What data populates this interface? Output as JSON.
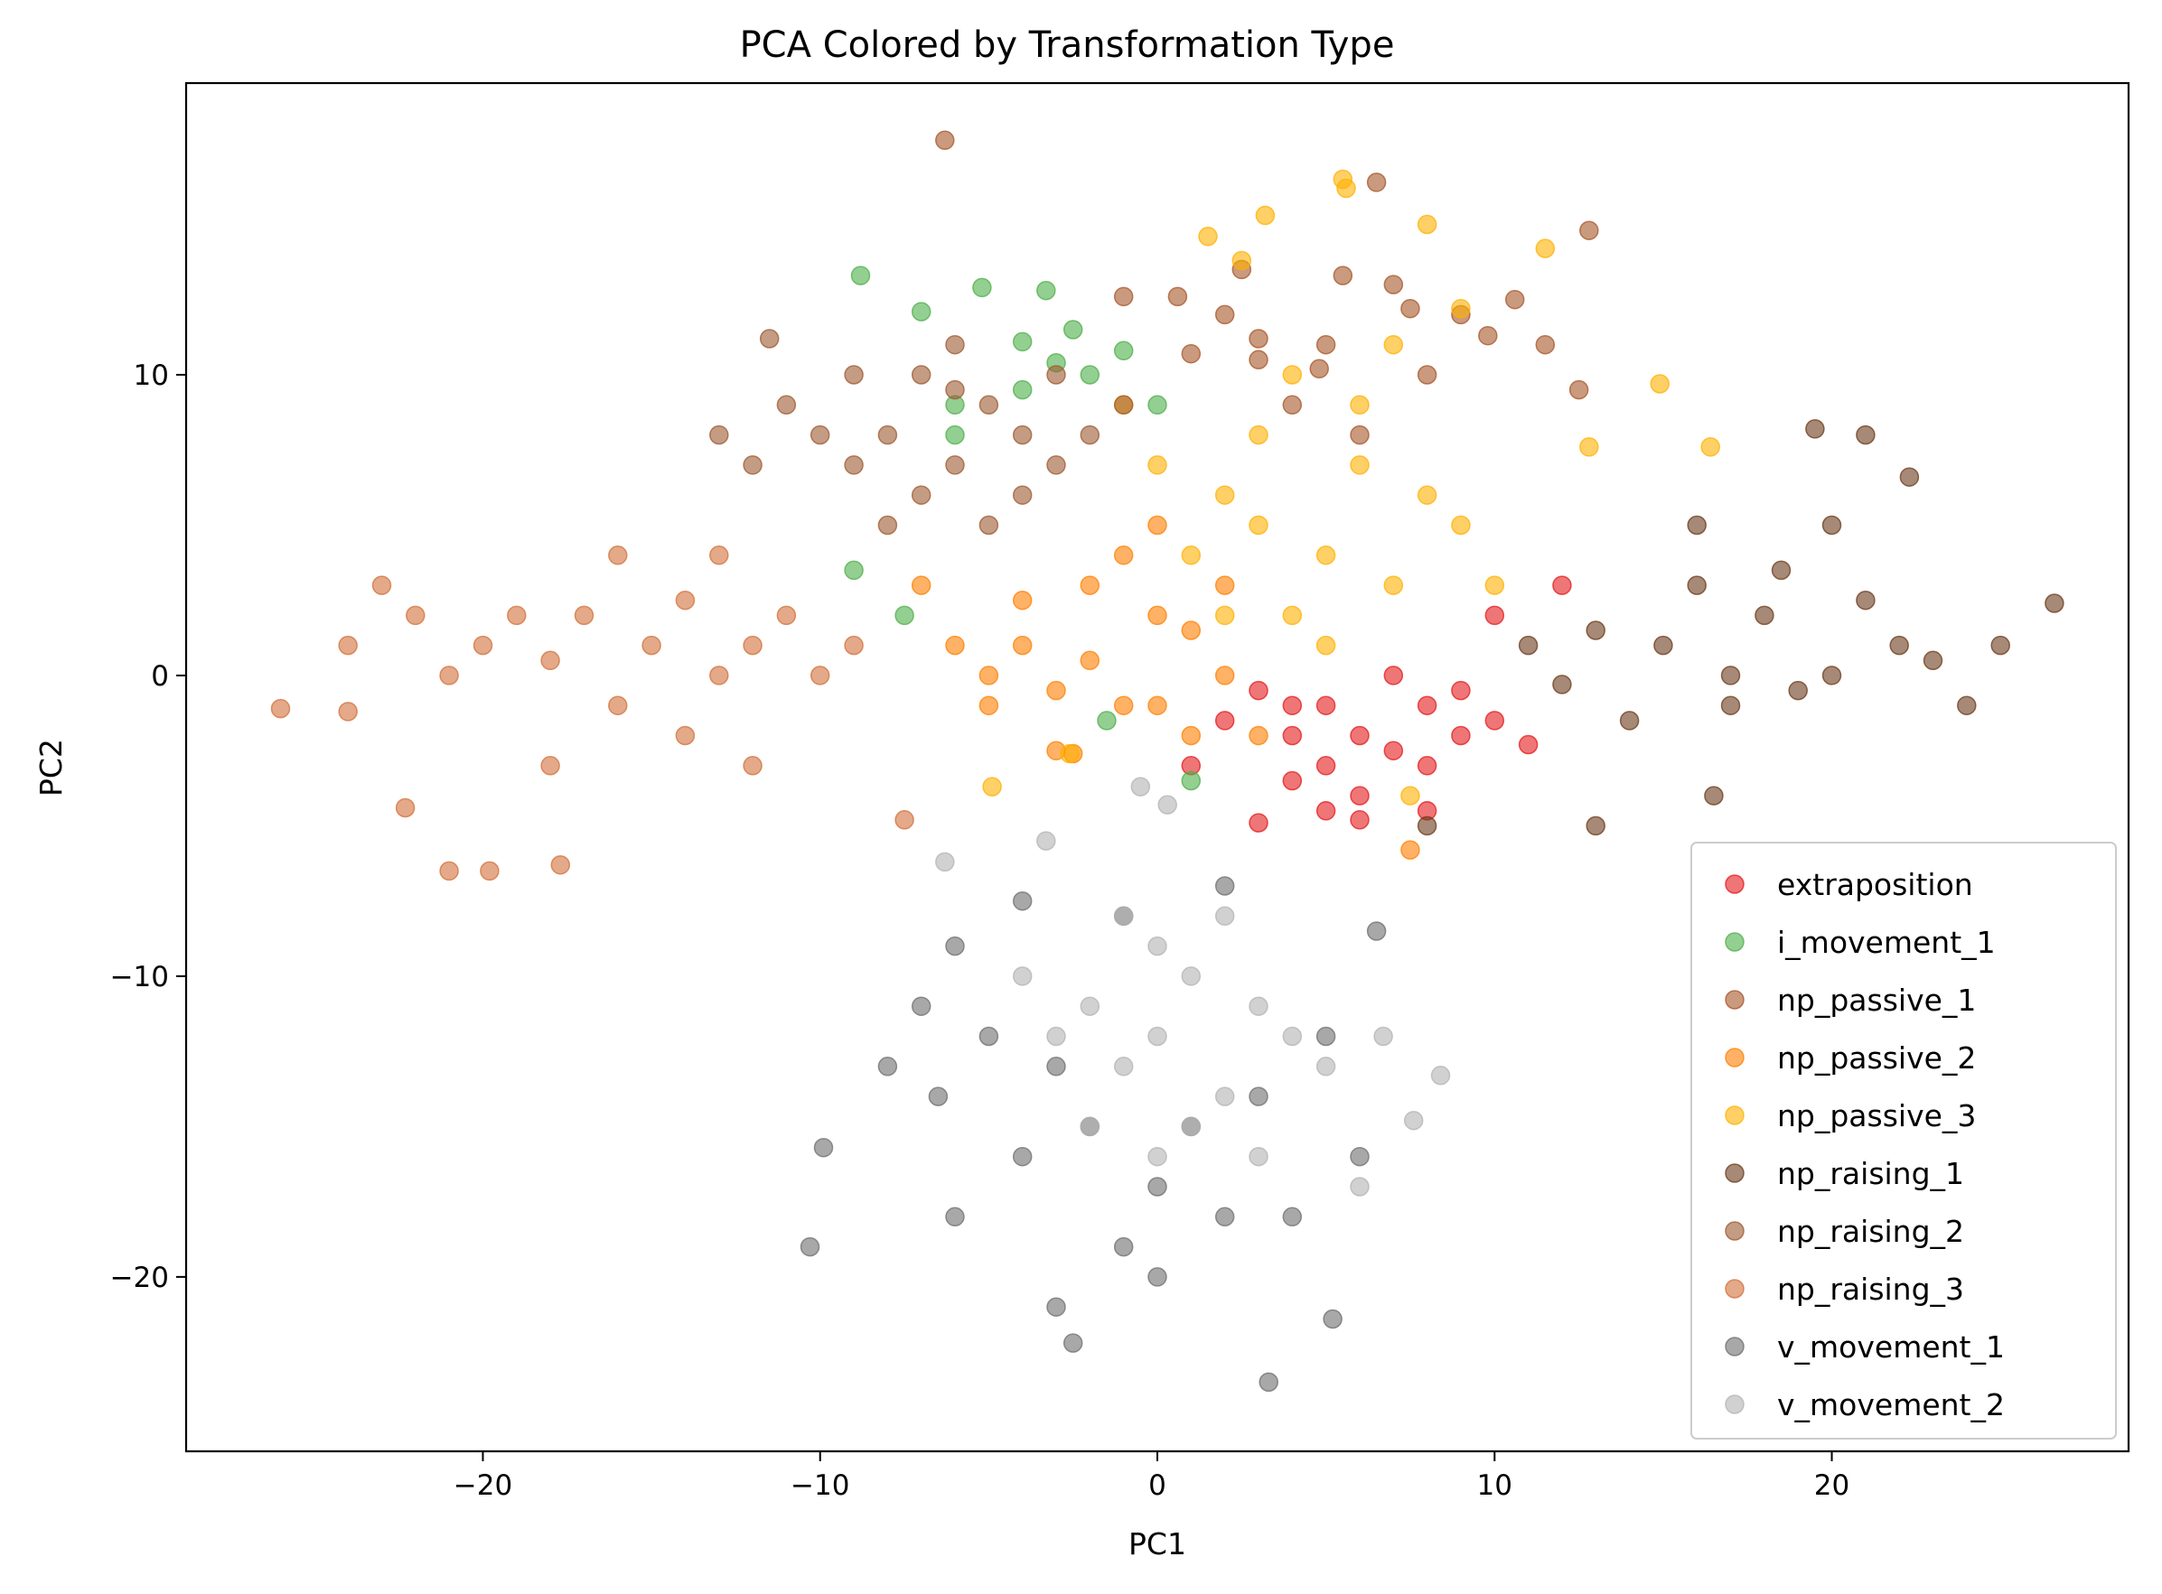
{
  "chart_data": {
    "type": "scatter",
    "title": "PCA Colored by Transformation Type",
    "xlabel": "PC1",
    "ylabel": "PC2",
    "xlim": [
      -28.8,
      28.8
    ],
    "ylim": [
      -25.8,
      19.7
    ],
    "xticks": [
      {
        "value": -20,
        "label": "−20"
      },
      {
        "value": -10,
        "label": "−10"
      },
      {
        "value": 0,
        "label": "0"
      },
      {
        "value": 10,
        "label": "10"
      },
      {
        "value": 20,
        "label": "20"
      }
    ],
    "yticks": [
      {
        "value": -20,
        "label": "−20"
      },
      {
        "value": -10,
        "label": "−10"
      },
      {
        "value": 0,
        "label": "0"
      },
      {
        "value": 10,
        "label": "10"
      }
    ],
    "grid": false,
    "legend_position": "bottom-right",
    "marker_alpha": 0.6,
    "series": [
      {
        "name": "extraposition",
        "color": "#e41a1c",
        "points": [
          [
            4,
            -1
          ],
          [
            6,
            -2
          ],
          [
            8,
            -1
          ],
          [
            5,
            -3
          ],
          [
            7,
            -2.5
          ],
          [
            3,
            -0.5
          ],
          [
            9,
            -0.5
          ],
          [
            6,
            -4
          ],
          [
            5,
            -4.5
          ],
          [
            8,
            -3
          ],
          [
            10,
            -1.5
          ],
          [
            4,
            -2
          ],
          [
            7,
            0
          ],
          [
            2,
            -1.5
          ],
          [
            11,
            -2.3
          ],
          [
            3,
            -4.9
          ],
          [
            6,
            -4.8
          ],
          [
            1,
            -3
          ],
          [
            8,
            -4.5
          ],
          [
            5,
            -1
          ],
          [
            9,
            -2
          ],
          [
            4,
            -3.5
          ],
          [
            12,
            3
          ],
          [
            10,
            2
          ]
        ]
      },
      {
        "name": "i_movement_1",
        "color": "#4daf4a",
        "points": [
          [
            -8.8,
            13.3
          ],
          [
            -5.2,
            12.9
          ],
          [
            -3.3,
            12.8
          ],
          [
            -7,
            12.1
          ],
          [
            -4,
            11.1
          ],
          [
            -2,
            10
          ],
          [
            0,
            9
          ],
          [
            -6,
            8
          ],
          [
            -4,
            9.5
          ],
          [
            -3,
            10.4
          ],
          [
            -1,
            10.8
          ],
          [
            -7.5,
            2
          ],
          [
            -9,
            3.5
          ],
          [
            -1.5,
            -1.5
          ],
          [
            1,
            -3.5
          ],
          [
            -6,
            9
          ],
          [
            -2.5,
            11.5
          ]
        ]
      },
      {
        "name": "np_passive_1",
        "color": "#a65628",
        "points": [
          [
            -6.3,
            17.8
          ],
          [
            6.5,
            16.4
          ],
          [
            12.8,
            14.8
          ],
          [
            2,
            12
          ],
          [
            5,
            11
          ],
          [
            3,
            10.5
          ],
          [
            7,
            13
          ],
          [
            9,
            12
          ],
          [
            10.6,
            12.5
          ],
          [
            11.5,
            11
          ],
          [
            -1,
            12.6
          ],
          [
            0.6,
            12.6
          ],
          [
            4,
            9
          ],
          [
            6,
            8
          ],
          [
            8,
            10
          ],
          [
            3,
            11.2
          ],
          [
            1,
            10.7
          ],
          [
            12.5,
            9.5
          ],
          [
            9.8,
            11.3
          ],
          [
            5.5,
            13.3
          ],
          [
            7.5,
            12.2
          ],
          [
            2.5,
            13.5
          ],
          [
            4.8,
            10.2
          ]
        ]
      },
      {
        "name": "np_passive_2",
        "color": "#ff7f00",
        "points": [
          [
            -4,
            1
          ],
          [
            -2,
            0.5
          ],
          [
            0,
            2
          ],
          [
            -1,
            -1
          ],
          [
            -3,
            -0.5
          ],
          [
            1,
            1.5
          ],
          [
            -5,
            0
          ],
          [
            2,
            0
          ],
          [
            -2,
            3
          ],
          [
            0,
            -1
          ],
          [
            -4,
            2.5
          ],
          [
            -6,
            1
          ],
          [
            3,
            -2
          ],
          [
            -1,
            4
          ],
          [
            -3,
            -2.5
          ],
          [
            1,
            -2
          ],
          [
            -5,
            -1
          ],
          [
            -7,
            3
          ],
          [
            -2.5,
            -2.6
          ],
          [
            7.5,
            -5.8
          ],
          [
            0,
            5
          ],
          [
            2,
            3
          ]
        ]
      },
      {
        "name": "np_passive_3",
        "color": "#ffb000",
        "points": [
          [
            5.5,
            16.5
          ],
          [
            3.2,
            15.3
          ],
          [
            1.5,
            14.6
          ],
          [
            8,
            15
          ],
          [
            11.5,
            14.2
          ],
          [
            14.9,
            9.7
          ],
          [
            16.4,
            7.6
          ],
          [
            12.8,
            7.6
          ],
          [
            2.5,
            13.8
          ],
          [
            5.6,
            16.2
          ],
          [
            -4.9,
            -3.7
          ],
          [
            -2.6,
            -2.6
          ],
          [
            7.5,
            -4
          ],
          [
            3,
            5
          ],
          [
            5,
            4
          ],
          [
            2,
            6
          ],
          [
            6,
            7
          ],
          [
            4,
            2
          ],
          [
            7,
            3
          ],
          [
            1,
            4
          ],
          [
            8,
            6
          ],
          [
            3,
            8
          ],
          [
            5,
            1
          ],
          [
            9,
            5
          ],
          [
            0,
            7
          ],
          [
            2,
            2
          ],
          [
            10,
            3
          ],
          [
            6,
            9
          ],
          [
            4,
            10
          ],
          [
            7,
            11
          ],
          [
            9,
            12.2
          ],
          [
            -1,
            9
          ]
        ]
      },
      {
        "name": "np_raising_1",
        "color": "#6b3a1a",
        "points": [
          [
            15,
            1
          ],
          [
            18,
            2
          ],
          [
            20,
            0
          ],
          [
            17,
            -1
          ],
          [
            22,
            1
          ],
          [
            13,
            1.5
          ],
          [
            16,
            3
          ],
          [
            19,
            -0.5
          ],
          [
            21,
            2.5
          ],
          [
            14,
            -1.5
          ],
          [
            23,
            0.5
          ],
          [
            25,
            1
          ],
          [
            26.6,
            2.4
          ],
          [
            24,
            -1
          ],
          [
            12,
            -0.3
          ],
          [
            20,
            5
          ],
          [
            19.5,
            8.2
          ],
          [
            21,
            8
          ],
          [
            22.3,
            6.6
          ],
          [
            16.5,
            -4
          ],
          [
            13,
            -5
          ],
          [
            8,
            -5
          ],
          [
            11,
            1
          ],
          [
            18.5,
            3.5
          ],
          [
            17,
            0
          ],
          [
            16,
            5
          ]
        ]
      },
      {
        "name": "np_raising_2",
        "color": "#9c5a32",
        "points": [
          [
            -8,
            8
          ],
          [
            -6,
            7
          ],
          [
            -4,
            8
          ],
          [
            -7,
            6
          ],
          [
            -5,
            9
          ],
          [
            -9,
            7
          ],
          [
            -3,
            7
          ],
          [
            -6,
            9.5
          ],
          [
            -8,
            5
          ],
          [
            -10,
            8
          ],
          [
            -4,
            6
          ],
          [
            -2,
            8
          ],
          [
            -11,
            9
          ],
          [
            -12,
            7
          ],
          [
            -6,
            11
          ],
          [
            -7,
            10
          ],
          [
            -9,
            10
          ],
          [
            -3,
            10
          ],
          [
            -1,
            9
          ],
          [
            -13,
            8
          ],
          [
            -11.5,
            11.2
          ],
          [
            -5,
            5
          ]
        ]
      },
      {
        "name": "np_raising_3",
        "color": "#d2703a",
        "points": [
          [
            -15,
            1
          ],
          [
            -13,
            0
          ],
          [
            -17,
            2
          ],
          [
            -14,
            2.5
          ],
          [
            -16,
            -1
          ],
          [
            -12,
            1
          ],
          [
            -18,
            0.5
          ],
          [
            -11,
            2
          ],
          [
            -19,
            2
          ],
          [
            -14,
            -2
          ],
          [
            -20,
            1
          ],
          [
            -21,
            0
          ],
          [
            -22,
            2
          ],
          [
            -23,
            3
          ],
          [
            -24,
            1
          ],
          [
            -26,
            -1.1
          ],
          [
            -19.8,
            -6.5
          ],
          [
            -17.7,
            -6.3
          ],
          [
            -21,
            -6.5
          ],
          [
            -10,
            0
          ],
          [
            -9,
            1
          ],
          [
            -13,
            4
          ],
          [
            -16,
            4
          ],
          [
            -12,
            -3
          ],
          [
            -7.5,
            -4.8
          ],
          [
            -22.3,
            -4.4
          ],
          [
            -24,
            -1.2
          ],
          [
            -18,
            -3
          ]
        ]
      },
      {
        "name": "v_movement_1",
        "color": "#6e6e6e",
        "points": [
          [
            -2,
            -15
          ],
          [
            0,
            -17
          ],
          [
            -3,
            -13
          ],
          [
            1,
            -15
          ],
          [
            -1,
            -19
          ],
          [
            2,
            -18
          ],
          [
            -4,
            -16
          ],
          [
            3,
            -14
          ],
          [
            -5,
            -12
          ],
          [
            0,
            -20
          ],
          [
            -3,
            -21
          ],
          [
            -2.5,
            -22.2
          ],
          [
            3.3,
            -23.5
          ],
          [
            5.2,
            -21.4
          ],
          [
            -10.3,
            -19
          ],
          [
            -9.9,
            -15.7
          ],
          [
            -6,
            -18
          ],
          [
            4,
            -18
          ],
          [
            6,
            -16
          ],
          [
            5,
            -12
          ],
          [
            -7,
            -11
          ],
          [
            -6,
            -9
          ],
          [
            -4,
            -7.5
          ],
          [
            -1,
            -8
          ],
          [
            2,
            -7
          ],
          [
            6.5,
            -8.5
          ],
          [
            -6.5,
            -14
          ],
          [
            -8,
            -13
          ]
        ]
      },
      {
        "name": "v_movement_2",
        "color": "#b3b3b3",
        "points": [
          [
            0,
            -12
          ],
          [
            1,
            -10
          ],
          [
            -1,
            -13
          ],
          [
            2,
            -14
          ],
          [
            0,
            -9
          ],
          [
            3,
            -11
          ],
          [
            -2,
            -11
          ],
          [
            1,
            -15
          ],
          [
            -1,
            -8
          ],
          [
            4,
            -12
          ],
          [
            -3,
            -12
          ],
          [
            2,
            -8
          ],
          [
            0,
            -16
          ],
          [
            5,
            -13
          ],
          [
            -2,
            -15
          ],
          [
            3,
            -16
          ],
          [
            7.6,
            -14.8
          ],
          [
            6.7,
            -12
          ],
          [
            8.4,
            -13.3
          ],
          [
            6,
            -17
          ],
          [
            -4,
            -10
          ],
          [
            -0.5,
            -3.7
          ],
          [
            0.3,
            -4.3
          ],
          [
            -6.3,
            -6.2
          ],
          [
            -3.3,
            -5.5
          ]
        ]
      }
    ]
  }
}
